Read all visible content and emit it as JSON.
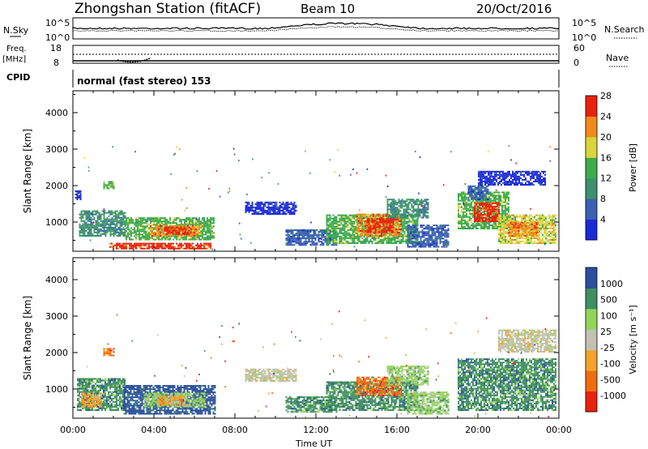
{
  "header": {
    "station": "Zhongshan Station (fitACF)",
    "beam": "Beam 10",
    "date": "20/Oct/2016"
  },
  "top_panel": {
    "left_label": "N.Sky",
    "left_ticks": [
      "10^5",
      "10^0"
    ],
    "right_label": "N.Search",
    "right_ticks": [
      "10^5",
      "10^0"
    ]
  },
  "freq_panel": {
    "left_label_1": "Freq.",
    "left_label_2": "[MHz]",
    "left_ticks": [
      "18",
      "8"
    ],
    "right_label": "Nave",
    "right_ticks": [
      "60",
      "0"
    ]
  },
  "cpid": {
    "label": "CPID",
    "mode": "normal (fast stereo) 153"
  },
  "colors": {
    "power": [
      "#1a2ad6",
      "#3b5fb4",
      "#3e8f6f",
      "#3cae49",
      "#dcd43d",
      "#f28a1b",
      "#e8220d"
    ],
    "velocity": [
      "#e8220d",
      "#f06d0f",
      "#f4a22b",
      "#c2c2b2",
      "#93d45a",
      "#3f8f62",
      "#2b4f9e"
    ]
  },
  "chart_data": [
    {
      "type": "heatmap",
      "name": "power",
      "ylabel": "Slant Range [km]",
      "xlabel": "",
      "ylim": [
        200,
        4600
      ],
      "yticks": [
        "1000",
        "2000",
        "3000",
        "4000"
      ],
      "xlim": [
        0,
        24
      ],
      "xticks": [
        "00:00",
        "04:00",
        "08:00",
        "12:00",
        "16:00",
        "20:00",
        "00:00"
      ],
      "colorbar": {
        "label": "Power [dB]",
        "ticks": [
          "4",
          "8",
          "12",
          "16",
          "20",
          "24",
          "28"
        ]
      },
      "regions": [
        {
          "t0": 0.3,
          "t1": 2.6,
          "r0": 600,
          "r1": 1300,
          "c": 2
        },
        {
          "t0": 0.1,
          "t1": 0.4,
          "r0": 1600,
          "r1": 1850,
          "c": 0
        },
        {
          "t0": 1.5,
          "t1": 2.0,
          "r0": 1900,
          "r1": 2100,
          "c": 3
        },
        {
          "t0": 2.6,
          "t1": 7.0,
          "r0": 500,
          "r1": 1100,
          "c": 3
        },
        {
          "t0": 3.8,
          "t1": 6.3,
          "r0": 600,
          "r1": 900,
          "c": 5
        },
        {
          "t0": 4.5,
          "t1": 5.8,
          "r0": 650,
          "r1": 850,
          "c": 6
        },
        {
          "t0": 1.8,
          "t1": 6.8,
          "r0": 250,
          "r1": 400,
          "c": 6
        },
        {
          "t0": 8.5,
          "t1": 11.0,
          "r0": 1200,
          "r1": 1550,
          "c": 0
        },
        {
          "t0": 10.5,
          "t1": 13.0,
          "r0": 350,
          "r1": 800,
          "c": 1
        },
        {
          "t0": 12.5,
          "t1": 17.0,
          "r0": 400,
          "r1": 1200,
          "c": 3
        },
        {
          "t0": 14.0,
          "t1": 16.2,
          "r0": 600,
          "r1": 1200,
          "c": 5
        },
        {
          "t0": 14.5,
          "t1": 15.8,
          "r0": 700,
          "r1": 1100,
          "c": 6
        },
        {
          "t0": 15.5,
          "t1": 17.5,
          "r0": 1100,
          "r1": 1600,
          "c": 2
        },
        {
          "t0": 16.5,
          "t1": 18.5,
          "r0": 300,
          "r1": 900,
          "c": 1
        },
        {
          "t0": 19.0,
          "t1": 21.5,
          "r0": 800,
          "r1": 1800,
          "c": 3
        },
        {
          "t0": 19.8,
          "t1": 21.0,
          "r0": 1000,
          "r1": 1500,
          "c": 6
        },
        {
          "t0": 21.0,
          "t1": 23.8,
          "r0": 400,
          "r1": 1200,
          "c": 4
        },
        {
          "t0": 21.5,
          "t1": 23.0,
          "r0": 600,
          "r1": 1000,
          "c": 5
        },
        {
          "t0": 20.0,
          "t1": 23.3,
          "r0": 2000,
          "r1": 2400,
          "c": 0
        },
        {
          "t0": 19.5,
          "t1": 20.5,
          "r0": 1600,
          "r1": 2000,
          "c": 1
        }
      ]
    },
    {
      "type": "heatmap",
      "name": "velocity",
      "ylabel": "Slant Range [km]",
      "xlabel": "Time UT",
      "ylim": [
        200,
        4600
      ],
      "yticks": [
        "1000",
        "2000",
        "3000",
        "4000"
      ],
      "xlim": [
        0,
        24
      ],
      "xticks": [
        "00:00",
        "04:00",
        "08:00",
        "12:00",
        "16:00",
        "20:00",
        "00:00"
      ],
      "colorbar": {
        "label": "Velocity [m s⁻¹]",
        "ticks": [
          "1000",
          "500",
          "100",
          "25",
          "-25",
          "-100",
          "-500",
          "-1000"
        ]
      },
      "regions": [
        {
          "t0": 0.2,
          "t1": 2.6,
          "r0": 400,
          "r1": 1300,
          "c": 5
        },
        {
          "t0": 0.4,
          "t1": 1.4,
          "r0": 500,
          "r1": 900,
          "c": 2
        },
        {
          "t0": 1.5,
          "t1": 2.0,
          "r0": 1900,
          "r1": 2100,
          "c": 1
        },
        {
          "t0": 2.5,
          "t1": 7.0,
          "r0": 300,
          "r1": 1100,
          "c": 6
        },
        {
          "t0": 3.5,
          "t1": 6.5,
          "r0": 500,
          "r1": 900,
          "c": 4
        },
        {
          "t0": 4.2,
          "t1": 5.5,
          "r0": 550,
          "r1": 800,
          "c": 2
        },
        {
          "t0": 8.5,
          "t1": 11.0,
          "r0": 1200,
          "r1": 1550,
          "c": 3
        },
        {
          "t0": 10.5,
          "t1": 13.0,
          "r0": 350,
          "r1": 800,
          "c": 5
        },
        {
          "t0": 12.5,
          "t1": 17.0,
          "r0": 400,
          "r1": 1200,
          "c": 5
        },
        {
          "t0": 14.0,
          "t1": 16.2,
          "r0": 800,
          "r1": 1300,
          "c": 1
        },
        {
          "t0": 15.5,
          "t1": 17.5,
          "r0": 1100,
          "r1": 1600,
          "c": 4
        },
        {
          "t0": 19.0,
          "t1": 23.8,
          "r0": 400,
          "r1": 1800,
          "c": 5
        },
        {
          "t0": 21.0,
          "t1": 23.8,
          "r0": 2000,
          "r1": 2600,
          "c": 3
        },
        {
          "t0": 16.5,
          "t1": 18.5,
          "r0": 300,
          "r1": 900,
          "c": 4
        }
      ]
    }
  ]
}
